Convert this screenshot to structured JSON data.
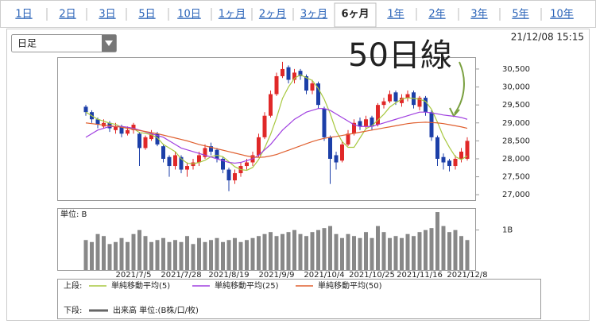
{
  "tabs": [
    "1日",
    "2日",
    "3日",
    "5日",
    "10日",
    "1ヶ月",
    "2ヶ月",
    "3ヶ月",
    "6ヶ月",
    "1年",
    "2年",
    "3年",
    "5年",
    "10年"
  ],
  "active_tab": 8,
  "dropdown": "日足",
  "timestamp": "21/12/08 15:15",
  "chart_data": {
    "type": "candlestick",
    "categories": [
      null,
      null,
      null,
      null,
      null,
      null,
      null,
      null,
      "2021/7/5",
      null,
      null,
      null,
      null,
      null,
      null,
      null,
      "2021/7/28",
      null,
      null,
      null,
      null,
      null,
      null,
      null,
      "2021/8/19",
      null,
      null,
      null,
      null,
      null,
      null,
      null,
      "2021/9/9",
      null,
      null,
      null,
      null,
      null,
      null,
      null,
      "2021/10/4",
      null,
      null,
      null,
      null,
      null,
      null,
      null,
      "2021/10/25",
      null,
      null,
      null,
      null,
      null,
      null,
      null,
      "2021/11/16",
      null,
      null,
      null,
      null,
      null,
      null,
      null,
      "2021/12/8"
    ],
    "open": [
      29450,
      29300,
      29100,
      28900,
      29000,
      28800,
      28900,
      28700,
      28800,
      28700,
      28300,
      28550,
      28700,
      28350,
      28050,
      27800,
      28050,
      27700,
      27800,
      27900,
      28050,
      28350,
      28250,
      28000,
      27700,
      27400,
      27600,
      27800,
      27900,
      28100,
      28600,
      29200,
      29800,
      30300,
      30550,
      30200,
      30450,
      30300,
      29900,
      30100,
      29400,
      28600,
      28100,
      27950,
      28400,
      28700,
      29050,
      28900,
      29150,
      28950,
      29500,
      29600,
      29850,
      29550,
      29700,
      29850,
      29450,
      29700,
      29300,
      28600,
      28050,
      27950,
      27800,
      28000,
      28000
    ],
    "high": [
      29500,
      29350,
      29150,
      29100,
      29050,
      29000,
      28950,
      28900,
      29000,
      28750,
      28650,
      28800,
      28750,
      28400,
      28100,
      28200,
      28100,
      27900,
      28000,
      28200,
      28400,
      28450,
      28300,
      28050,
      27750,
      27700,
      27900,
      28000,
      28200,
      28700,
      29300,
      29900,
      30400,
      30700,
      30600,
      30500,
      30500,
      30350,
      30200,
      30150,
      29450,
      28650,
      28200,
      28500,
      28800,
      29100,
      29150,
      29200,
      29200,
      29550,
      29700,
      29900,
      29900,
      29800,
      29900,
      29900,
      29750,
      29750,
      29350,
      28650,
      28150,
      28000,
      28100,
      28300,
      28600
    ],
    "low": [
      29200,
      29000,
      28850,
      28850,
      28750,
      28700,
      28600,
      28650,
      28700,
      27800,
      28250,
      28500,
      28350,
      27900,
      27500,
      27700,
      27600,
      27500,
      27700,
      27800,
      28000,
      28100,
      27900,
      27600,
      27100,
      27300,
      27500,
      27700,
      27800,
      28050,
      28550,
      29150,
      29750,
      30250,
      30100,
      30100,
      30200,
      29800,
      29800,
      29400,
      28500,
      27300,
      27700,
      27900,
      28350,
      28650,
      28800,
      28850,
      28800,
      28900,
      29400,
      29550,
      29500,
      29450,
      29600,
      29400,
      29350,
      29200,
      28500,
      27800,
      27700,
      27650,
      27700,
      27900,
      27950
    ],
    "close": [
      29300,
      29100,
      28950,
      29000,
      28850,
      28900,
      28700,
      28800,
      28950,
      28300,
      28600,
      28700,
      28400,
      28000,
      27800,
      28100,
      27700,
      27800,
      27900,
      28100,
      28300,
      28200,
      28000,
      27700,
      27400,
      27600,
      27800,
      27900,
      28100,
      28600,
      29200,
      29800,
      30300,
      30500,
      30200,
      30400,
      30300,
      29900,
      30100,
      29500,
      28600,
      28000,
      27900,
      28400,
      28700,
      29000,
      28900,
      29100,
      28900,
      29500,
      29600,
      29800,
      29600,
      29700,
      29800,
      29500,
      29700,
      29300,
      28600,
      28000,
      27900,
      27800,
      28000,
      28200,
      28500
    ],
    "up_color": "#e02828",
    "down_color": "#1c3fa8",
    "ylim": [
      26850,
      30830
    ],
    "yticks": [
      {
        "value": 27000,
        "label": "27,000"
      },
      {
        "value": 27500,
        "label": "27,500"
      },
      {
        "value": 28000,
        "label": "28,000"
      },
      {
        "value": 28500,
        "label": "28,500"
      },
      {
        "value": 29000,
        "label": "29,000"
      },
      {
        "value": 29500,
        "label": "29,500"
      },
      {
        "value": 30000,
        "label": "30,000"
      },
      {
        "value": 30500,
        "label": "30,500"
      }
    ],
    "legend_upper": "上段:",
    "legend_lower": "下段:",
    "overlays": [
      {
        "name": "単純移動平均(5)",
        "color": "#a8c840",
        "values": [
          29300,
          29200,
          29100,
          29050,
          28990,
          28960,
          28880,
          28850,
          28840,
          28730,
          28710,
          28670,
          28590,
          28400,
          28300,
          28200,
          28000,
          27880,
          27860,
          27900,
          27960,
          28060,
          28100,
          28060,
          27920,
          27780,
          27700,
          27680,
          27760,
          27980,
          28300,
          28680,
          29140,
          29680,
          30000,
          30240,
          30340,
          30260,
          30180,
          29960,
          29660,
          29260,
          28780,
          28480,
          28320,
          28320,
          28580,
          28840,
          28920,
          29080,
          29240,
          29440,
          29560,
          29660,
          29700,
          29680,
          29660,
          29600,
          29380,
          29020,
          28620,
          28320,
          28060,
          27980,
          28080
        ]
      },
      {
        "name": "単純移動平均(25)",
        "color": "#a040e0",
        "values": [
          28600,
          28700,
          28800,
          28850,
          28900,
          28900,
          28900,
          28880,
          28850,
          28800,
          28750,
          28700,
          28650,
          28600,
          28500,
          28400,
          28300,
          28250,
          28200,
          28150,
          28100,
          28050,
          28000,
          27950,
          27900,
          27880,
          27900,
          27950,
          28000,
          28100,
          28250,
          28400,
          28600,
          28800,
          28950,
          29100,
          29200,
          29300,
          29350,
          29400,
          29400,
          29350,
          29250,
          29150,
          29050,
          28950,
          28900,
          28900,
          28900,
          28950,
          29000,
          29050,
          29100,
          29150,
          29200,
          29250,
          29300,
          29300,
          29280,
          29250,
          29220,
          29200,
          29180,
          29150,
          29100
        ]
      },
      {
        "name": "単純移動平均(50)",
        "color": "#e06030",
        "values": [
          29000,
          28980,
          28960,
          28940,
          28920,
          28900,
          28880,
          28850,
          28820,
          28790,
          28760,
          28730,
          28700,
          28660,
          28620,
          28580,
          28540,
          28500,
          28450,
          28400,
          28360,
          28320,
          28280,
          28240,
          28200,
          28160,
          28120,
          28080,
          28050,
          28040,
          28050,
          28080,
          28120,
          28180,
          28240,
          28300,
          28360,
          28420,
          28480,
          28530,
          28570,
          28600,
          28620,
          28650,
          28680,
          28710,
          28740,
          28770,
          28800,
          28830,
          28860,
          28890,
          28920,
          28950,
          28980,
          29000,
          29010,
          29020,
          29010,
          29000,
          28980,
          28950,
          28920,
          28890,
          28850
        ]
      }
    ],
    "volume": {
      "label": "単位: B",
      "name": "出来高 単位:(B株/口/枚)",
      "color": "#888888",
      "ylim": [
        0,
        1.55
      ],
      "yticks": [
        {
          "value": 1,
          "label": "1B"
        }
      ],
      "values": [
        0.75,
        0.7,
        0.9,
        0.85,
        0.65,
        0.7,
        0.8,
        0.7,
        0.9,
        1.0,
        0.85,
        0.7,
        0.75,
        0.8,
        0.7,
        0.75,
        0.7,
        0.85,
        0.65,
        0.8,
        0.7,
        0.75,
        0.8,
        0.7,
        0.75,
        0.8,
        0.7,
        0.75,
        0.8,
        0.85,
        0.9,
        0.95,
        0.85,
        0.9,
        0.95,
        1.0,
        0.9,
        0.85,
        0.95,
        1.0,
        1.05,
        1.1,
        0.9,
        0.8,
        0.9,
        0.85,
        0.8,
        0.95,
        0.8,
        1.1,
        0.95,
        0.8,
        0.85,
        0.8,
        0.9,
        0.85,
        0.95,
        1.0,
        1.05,
        1.45,
        1.1,
        0.95,
        1.0,
        0.85,
        0.75
      ]
    },
    "annotation": {
      "text": "50日線",
      "color": "#7aa040"
    }
  }
}
